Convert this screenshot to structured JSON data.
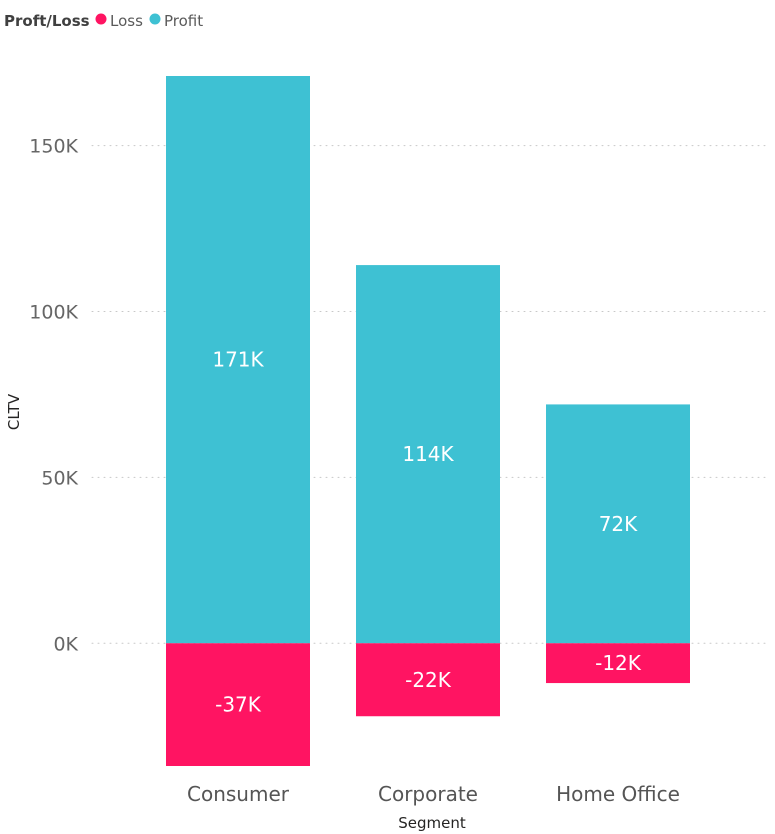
{
  "legend": {
    "title": "Proft/Loss",
    "items": [
      {
        "label": "Loss",
        "color": "#FF1462"
      },
      {
        "label": "Profit",
        "color": "#3EC1D3"
      }
    ]
  },
  "chart_data": {
    "type": "bar",
    "stacked": true,
    "title": "",
    "xlabel": "Segment",
    "ylabel": "CLTV",
    "categories": [
      "Consumer",
      "Corporate",
      "Home Office"
    ],
    "series": [
      {
        "name": "Profit",
        "color": "#3EC1D3",
        "values": [
          171000,
          114000,
          72000
        ],
        "labels": [
          "171K",
          "114K",
          "72K"
        ]
      },
      {
        "name": "Loss",
        "color": "#FF1462",
        "values": [
          -37000,
          -22000,
          -12000
        ],
        "labels": [
          "-37K",
          "-22K",
          "-12K"
        ]
      }
    ],
    "yticks": [
      {
        "value": 0,
        "label": "0K"
      },
      {
        "value": 50000,
        "label": "50K"
      },
      {
        "value": 100000,
        "label": "100K"
      },
      {
        "value": 150000,
        "label": "150K"
      }
    ],
    "ylim": [
      -37000,
      171000
    ],
    "grid": true,
    "legend_position": "top-left"
  }
}
